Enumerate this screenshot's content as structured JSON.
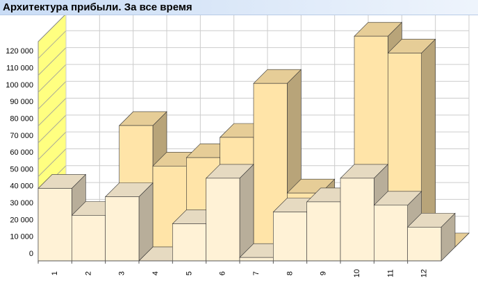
{
  "chart_data": {
    "type": "bar3d",
    "title": "Архитектура прибыли. За все время",
    "categories": [
      "1",
      "2",
      "3",
      "4",
      "5",
      "6",
      "7",
      "8",
      "9",
      "10",
      "11",
      "12"
    ],
    "series": [
      {
        "color": "#ffe4a8",
        "values": [
          0,
          0,
          72000,
          48000,
          53000,
          65000,
          97000,
          32000,
          0,
          125000,
          115000,
          0
        ]
      },
      {
        "color": "#fff2d6",
        "values": [
          43000,
          27000,
          38000,
          0,
          22000,
          49000,
          2000,
          29000,
          35000,
          49000,
          33000,
          20000
        ]
      }
    ],
    "ylim": [
      0,
      130000
    ],
    "yticks": [
      0,
      {
        "value": 10000,
        "label": "10 000"
      },
      {
        "value": 20000,
        "label": "20 000"
      },
      {
        "value": 30000,
        "label": "30 000"
      },
      {
        "value": 40000,
        "label": "40 000"
      },
      {
        "value": 50000,
        "label": "50 000"
      },
      {
        "value": 60000,
        "label": "60 000"
      },
      {
        "value": 70000,
        "label": "70 000"
      },
      {
        "value": 80000,
        "label": "80 000"
      },
      {
        "value": 90000,
        "label": "90 000"
      },
      {
        "value": 100000,
        "label": "100 000"
      },
      {
        "value": 110000,
        "label": "110 000"
      },
      {
        "value": 120000,
        "label": "120 000"
      }
    ],
    "grid": true
  }
}
